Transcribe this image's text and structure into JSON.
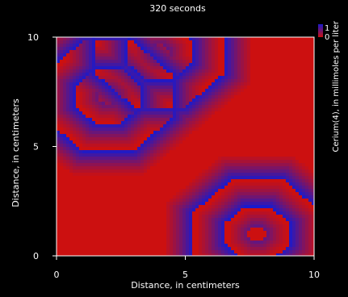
{
  "chart_data": {
    "type": "heatmap",
    "title": "320 seconds",
    "xlabel": "Distance, in centimeters",
    "ylabel": "Distance, in centimeters",
    "xlim": [
      0,
      10
    ],
    "ylim": [
      0,
      10
    ],
    "x_ticks": [
      0,
      5,
      10
    ],
    "y_ticks": [
      0,
      5,
      10
    ],
    "colorbar": {
      "label": "Cerium(4), in millimoles per liter",
      "ticks": [
        "1",
        "0"
      ],
      "range": [
        0,
        1
      ],
      "color_low": "#cc1010",
      "color_high": "#1a1acc"
    },
    "background_value": 0,
    "wave_sources": [
      {
        "x": 2.0,
        "y": 7.3
      },
      {
        "x": 4.0,
        "y": 9.3
      },
      {
        "x": 7.8,
        "y": 1.0
      }
    ],
    "wave_period_cm": 1.25,
    "wave_count": 3
  }
}
